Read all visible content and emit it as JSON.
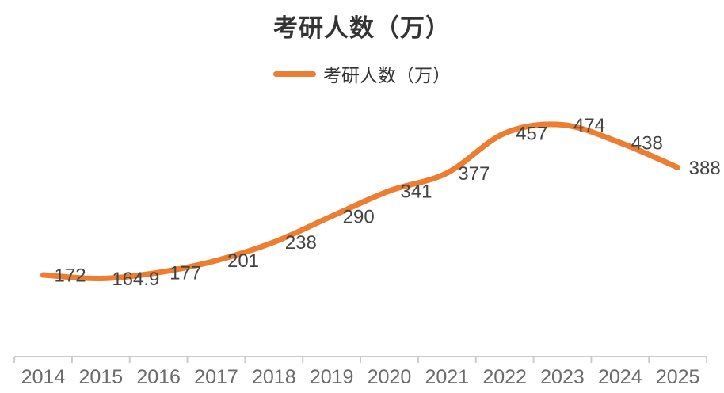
{
  "chart_data": {
    "type": "line",
    "title": "考研人数（万）",
    "categories": [
      "2014",
      "2015",
      "2016",
      "2017",
      "2018",
      "2019",
      "2020",
      "2021",
      "2022",
      "2023",
      "2024",
      "2025"
    ],
    "series": [
      {
        "name": "考研人数（万）",
        "values": [
          172,
          164.9,
          177,
          201,
          238,
          290,
          341,
          377,
          457,
          474,
          438,
          388
        ],
        "color": "#ED7D31"
      }
    ],
    "data_labels": [
      "172",
      "164.9",
      "177",
      "201",
      "238",
      "290",
      "341",
      "377",
      "457",
      "474",
      "438",
      "388"
    ],
    "smooth": true,
    "show_data_labels": true,
    "legend_position": "top",
    "grid": false,
    "y_axis_visible": false,
    "xlabel": "",
    "ylabel": "",
    "colors": {
      "line": "#ED7D31",
      "title_text": "#333333",
      "legend_text": "#333333",
      "data_label_text": "#434343",
      "axis_line": "#CCCCCC",
      "axis_label_text": "#6B6B6B",
      "background": "#FFFFFF"
    }
  }
}
